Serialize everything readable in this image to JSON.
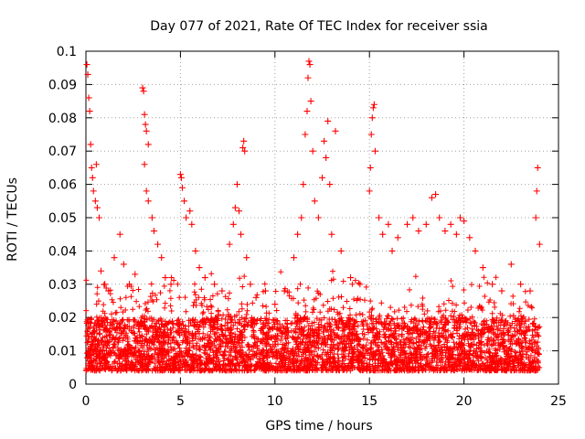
{
  "chart_data": {
    "type": "scatter",
    "title": "Day 077 of 2021, Rate Of TEC Index for receiver ssia",
    "xlabel": "GPS time / hours",
    "ylabel": "ROTI / TECUs",
    "xlim": [
      0,
      25
    ],
    "ylim": [
      0,
      0.1
    ],
    "xticks": [
      0,
      5,
      10,
      15,
      20,
      25
    ],
    "xtick_labels": [
      "0",
      "5",
      "10",
      "15",
      "20",
      "25"
    ],
    "yticks": [
      0,
      0.01,
      0.02,
      0.03,
      0.04,
      0.05,
      0.06,
      0.07,
      0.08,
      0.09,
      0.1
    ],
    "ytick_labels": [
      "0",
      "0.01",
      "0.02",
      "0.03",
      "0.04",
      "0.05",
      "0.06",
      "0.07",
      "0.08",
      "0.09",
      "0.1"
    ],
    "grid": true,
    "marker": "+",
    "marker_color": "#ff0000",
    "data_x_range": [
      0,
      24
    ],
    "baseline_range": [
      0.004,
      0.02
    ],
    "series": [
      {
        "name": "ROTI",
        "points": [
          [
            0.05,
            0.096
          ],
          [
            0.1,
            0.093
          ],
          [
            0.15,
            0.086
          ],
          [
            0.2,
            0.082
          ],
          [
            0.25,
            0.072
          ],
          [
            0.3,
            0.065
          ],
          [
            0.35,
            0.062
          ],
          [
            0.4,
            0.058
          ],
          [
            0.5,
            0.055
          ],
          [
            0.55,
            0.066
          ],
          [
            0.6,
            0.053
          ],
          [
            0.7,
            0.05
          ],
          [
            0.8,
            0.034
          ],
          [
            1.0,
            0.03
          ],
          [
            1.2,
            0.028
          ],
          [
            1.5,
            0.038
          ],
          [
            1.8,
            0.045
          ],
          [
            2.0,
            0.036
          ],
          [
            2.3,
            0.03
          ],
          [
            2.6,
            0.033
          ],
          [
            3.0,
            0.089
          ],
          [
            3.05,
            0.088
          ],
          [
            3.1,
            0.081
          ],
          [
            3.15,
            0.078
          ],
          [
            3.2,
            0.076
          ],
          [
            3.3,
            0.072
          ],
          [
            3.1,
            0.066
          ],
          [
            3.2,
            0.058
          ],
          [
            3.3,
            0.055
          ],
          [
            3.5,
            0.05
          ],
          [
            3.6,
            0.046
          ],
          [
            3.8,
            0.042
          ],
          [
            4.0,
            0.038
          ],
          [
            4.2,
            0.032
          ],
          [
            4.5,
            0.03
          ],
          [
            5.0,
            0.063
          ],
          [
            5.05,
            0.062
          ],
          [
            5.1,
            0.059
          ],
          [
            5.2,
            0.055
          ],
          [
            5.3,
            0.05
          ],
          [
            5.5,
            0.052
          ],
          [
            5.6,
            0.048
          ],
          [
            5.8,
            0.04
          ],
          [
            6.0,
            0.035
          ],
          [
            6.3,
            0.032
          ],
          [
            6.8,
            0.03
          ],
          [
            7.2,
            0.028
          ],
          [
            7.6,
            0.042
          ],
          [
            7.8,
            0.048
          ],
          [
            7.9,
            0.053
          ],
          [
            8.0,
            0.06
          ],
          [
            8.1,
            0.052
          ],
          [
            8.2,
            0.045
          ],
          [
            8.3,
            0.071
          ],
          [
            8.35,
            0.073
          ],
          [
            8.4,
            0.07
          ],
          [
            8.5,
            0.038
          ],
          [
            8.7,
            0.03
          ],
          [
            9.0,
            0.026
          ],
          [
            9.5,
            0.028
          ],
          [
            10.0,
            0.024
          ],
          [
            10.5,
            0.028
          ],
          [
            11.0,
            0.038
          ],
          [
            11.2,
            0.045
          ],
          [
            11.4,
            0.05
          ],
          [
            11.5,
            0.06
          ],
          [
            11.6,
            0.075
          ],
          [
            11.7,
            0.082
          ],
          [
            11.75,
            0.092
          ],
          [
            11.8,
            0.097
          ],
          [
            11.85,
            0.096
          ],
          [
            11.9,
            0.085
          ],
          [
            12.0,
            0.07
          ],
          [
            12.1,
            0.055
          ],
          [
            12.3,
            0.05
          ],
          [
            12.5,
            0.062
          ],
          [
            12.6,
            0.073
          ],
          [
            12.7,
            0.068
          ],
          [
            12.8,
            0.079
          ],
          [
            12.9,
            0.06
          ],
          [
            13.0,
            0.045
          ],
          [
            13.2,
            0.076
          ],
          [
            13.5,
            0.04
          ],
          [
            14.0,
            0.032
          ],
          [
            14.5,
            0.03
          ],
          [
            15.0,
            0.058
          ],
          [
            15.05,
            0.065
          ],
          [
            15.1,
            0.075
          ],
          [
            15.15,
            0.08
          ],
          [
            15.2,
            0.083
          ],
          [
            15.25,
            0.084
          ],
          [
            15.3,
            0.07
          ],
          [
            15.5,
            0.05
          ],
          [
            15.7,
            0.045
          ],
          [
            16.0,
            0.048
          ],
          [
            16.2,
            0.04
          ],
          [
            16.5,
            0.044
          ],
          [
            17.0,
            0.048
          ],
          [
            17.3,
            0.05
          ],
          [
            17.6,
            0.046
          ],
          [
            18.0,
            0.048
          ],
          [
            18.3,
            0.056
          ],
          [
            18.5,
            0.057
          ],
          [
            18.7,
            0.05
          ],
          [
            19.0,
            0.046
          ],
          [
            19.3,
            0.048
          ],
          [
            19.6,
            0.045
          ],
          [
            19.8,
            0.05
          ],
          [
            20.0,
            0.049
          ],
          [
            20.3,
            0.044
          ],
          [
            20.6,
            0.04
          ],
          [
            21.0,
            0.035
          ],
          [
            21.5,
            0.03
          ],
          [
            22.0,
            0.028
          ],
          [
            22.5,
            0.036
          ],
          [
            23.0,
            0.03
          ],
          [
            23.5,
            0.028
          ],
          [
            23.8,
            0.05
          ],
          [
            23.85,
            0.058
          ],
          [
            23.9,
            0.065
          ],
          [
            24.0,
            0.042
          ]
        ]
      }
    ]
  }
}
